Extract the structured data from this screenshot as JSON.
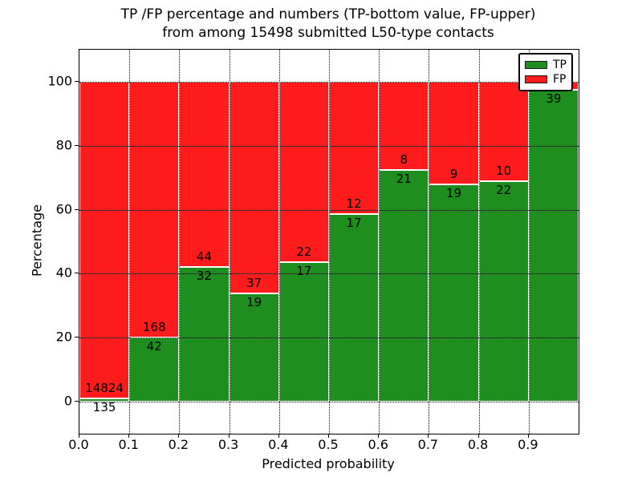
{
  "title": {
    "line1": "TP /FP percentage and numbers (TP-bottom value, FP-upper)",
    "line2": "from among 15498 submitted L50-type contacts"
  },
  "axes": {
    "xlabel": "Predicted probability",
    "ylabel": "Percentage",
    "yticks": [
      0,
      20,
      40,
      60,
      80,
      100
    ],
    "xticks": [
      "0.0",
      "0.1",
      "0.2",
      "0.3",
      "0.4",
      "0.5",
      "0.6",
      "0.7",
      "0.8",
      "0.9"
    ],
    "ylim": [
      -10,
      110
    ],
    "xlim": [
      0,
      1
    ],
    "grid_style": "dotted"
  },
  "legend": {
    "position": "upper-right",
    "items": [
      {
        "label": "TP",
        "color": "#1E8F1E"
      },
      {
        "label": "FP",
        "color": "#FD1B1B"
      }
    ]
  },
  "colors": {
    "tp": "#1E8F1E",
    "fp": "#FD1B1B",
    "bar_edge": "#FFFFFF",
    "grid": "#000000",
    "background": "#FFFFFF",
    "text": "#000000"
  },
  "chart_data": {
    "type": "bar",
    "stacked": true,
    "normalized_to_percent": 100,
    "title": "TP /FP percentage and numbers (TP-bottom value, FP-upper) from among 15498 submitted L50-type contacts",
    "xlabel": "Predicted probability",
    "ylabel": "Percentage",
    "total_submitted": 15498,
    "bin_width": 0.1,
    "series_names": [
      "TP",
      "FP"
    ],
    "bins": [
      {
        "x0": 0.0,
        "x1": 0.1,
        "tp": 135,
        "fp": 14824,
        "tp_pct": 0.9,
        "tp_label": "135",
        "fp_label": "14824"
      },
      {
        "x0": 0.1,
        "x1": 0.2,
        "tp": 42,
        "fp": 168,
        "tp_pct": 20.0,
        "tp_label": "42",
        "fp_label": "168"
      },
      {
        "x0": 0.2,
        "x1": 0.3,
        "tp": 32,
        "fp": 44,
        "tp_pct": 42.1,
        "tp_label": "32",
        "fp_label": "44"
      },
      {
        "x0": 0.3,
        "x1": 0.4,
        "tp": 19,
        "fp": 37,
        "tp_pct": 33.9,
        "tp_label": "19",
        "fp_label": "37"
      },
      {
        "x0": 0.4,
        "x1": 0.5,
        "tp": 17,
        "fp": 22,
        "tp_pct": 43.6,
        "tp_label": "17",
        "fp_label": "22"
      },
      {
        "x0": 0.5,
        "x1": 0.6,
        "tp": 17,
        "fp": 12,
        "tp_pct": 58.6,
        "tp_label": "17",
        "fp_label": "12"
      },
      {
        "x0": 0.6,
        "x1": 0.7,
        "tp": 21,
        "fp": 8,
        "tp_pct": 72.4,
        "tp_label": "21",
        "fp_label": "8"
      },
      {
        "x0": 0.7,
        "x1": 0.8,
        "tp": 19,
        "fp": 9,
        "tp_pct": 67.9,
        "tp_label": "19",
        "fp_label": "9"
      },
      {
        "x0": 0.8,
        "x1": 0.9,
        "tp": 22,
        "fp": 10,
        "tp_pct": 68.8,
        "tp_label": "22",
        "fp_label": "10"
      },
      {
        "x0": 0.9,
        "x1": 1.0,
        "tp": 39,
        "fp": 1,
        "tp_pct": 97.5,
        "tp_label": "39",
        "fp_label": null
      }
    ]
  }
}
